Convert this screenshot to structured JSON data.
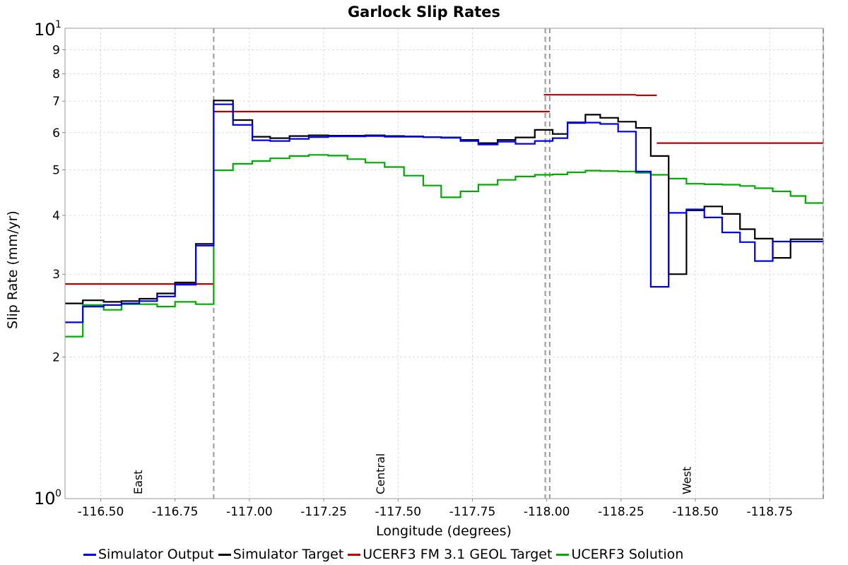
{
  "chart_data": {
    "type": "line",
    "title": "Garlock Slip Rates",
    "xlabel": "Longitude (degrees)",
    "ylabel": "Slip Rate (mm/yr)",
    "x_axis": {
      "reversed": true,
      "range": [
        -116.38,
        -118.93
      ],
      "ticks": [
        -116.5,
        -116.75,
        -117.0,
        -117.25,
        -117.5,
        -117.75,
        -118.0,
        -118.25,
        -118.5,
        -118.75
      ],
      "tick_labels": [
        "-116.50",
        "-116.75",
        "-117.00",
        "-117.25",
        "-117.50",
        "-117.75",
        "-118.00",
        "-118.25",
        "-118.50",
        "-118.75"
      ]
    },
    "y_axis": {
      "scale": "log",
      "range": [
        1,
        10
      ],
      "minor_ticks": [
        2,
        3,
        4,
        5,
        6,
        7,
        8,
        9
      ],
      "minor_tick_labels": [
        "2",
        "3",
        "4",
        "5",
        "6",
        "7",
        "8",
        "9"
      ],
      "major_tick_base": "10",
      "major_ticks": [
        {
          "value": 1,
          "exponent": "0"
        },
        {
          "value": 10,
          "exponent": "1"
        }
      ]
    },
    "grid": true,
    "legend_position": "bottom",
    "section_boundaries": [
      -116.88,
      -117.995,
      -118.01,
      -118.93
    ],
    "sections": [
      {
        "label": "East",
        "x": -116.625
      },
      {
        "label": "Central",
        "x": -117.44
      },
      {
        "label": "West",
        "x": -118.47
      }
    ],
    "series": [
      {
        "name": "UCERF3 FM 3.1 GEOL Target",
        "color": "#bb0000",
        "steps": [
          {
            "x0": -116.38,
            "x1": -116.88,
            "y": 2.86
          },
          {
            "x0": -116.88,
            "x1": -118.01,
            "y": 6.65
          },
          {
            "x0": -117.99,
            "x1": -118.3,
            "y": 7.22
          },
          {
            "x0": -118.3,
            "x1": -118.37,
            "y": 7.2
          },
          {
            "x0": -118.37,
            "x1": -118.93,
            "y": 5.7
          }
        ]
      },
      {
        "name": "UCERF3 Solution",
        "color": "#00aa00",
        "x": [
          -116.38,
          -116.44,
          -116.51,
          -116.57,
          -116.63,
          -116.69,
          -116.75,
          -116.82,
          -116.88,
          -116.945,
          -117.01,
          -117.07,
          -117.135,
          -117.2,
          -117.265,
          -117.33,
          -117.39,
          -117.455,
          -117.52,
          -117.585,
          -117.645,
          -117.71,
          -117.77,
          -117.835,
          -117.895,
          -117.96,
          -118.02,
          -118.07,
          -118.13,
          -118.18,
          -118.24,
          -118.3,
          -118.35,
          -118.41,
          -118.47,
          -118.53,
          -118.59,
          -118.65,
          -118.7,
          -118.76,
          -118.82,
          -118.87,
          -118.93
        ],
        "y": [
          2.21,
          2.58,
          2.52,
          2.59,
          2.59,
          2.56,
          2.62,
          2.59,
          4.99,
          5.15,
          5.22,
          5.29,
          5.35,
          5.38,
          5.36,
          5.27,
          5.18,
          5.07,
          4.86,
          4.63,
          4.37,
          4.5,
          4.65,
          4.76,
          4.84,
          4.88,
          4.89,
          4.94,
          4.98,
          4.97,
          4.96,
          4.93,
          4.88,
          4.79,
          4.67,
          4.66,
          4.65,
          4.62,
          4.57,
          4.5,
          4.4,
          4.25,
          4.25
        ]
      },
      {
        "name": "Simulator Target",
        "color": "#000000",
        "x": [
          -116.38,
          -116.44,
          -116.51,
          -116.57,
          -116.63,
          -116.69,
          -116.75,
          -116.82,
          -116.88,
          -116.945,
          -117.01,
          -117.07,
          -117.135,
          -117.2,
          -117.265,
          -117.33,
          -117.39,
          -117.455,
          -117.52,
          -117.585,
          -117.645,
          -117.71,
          -117.77,
          -117.835,
          -117.895,
          -117.96,
          -118.02,
          -118.07,
          -118.13,
          -118.18,
          -118.24,
          -118.3,
          -118.35,
          -118.41,
          -118.47,
          -118.53,
          -118.59,
          -118.65,
          -118.7,
          -118.76,
          -118.82,
          -118.87,
          -118.93
        ],
        "y": [
          2.6,
          2.64,
          2.62,
          2.63,
          2.66,
          2.73,
          2.88,
          3.48,
          7.02,
          6.38,
          5.88,
          5.84,
          5.9,
          5.92,
          5.91,
          5.91,
          5.92,
          5.9,
          5.89,
          5.87,
          5.86,
          5.79,
          5.7,
          5.79,
          5.86,
          6.08,
          5.96,
          6.29,
          6.55,
          6.45,
          6.33,
          6.14,
          5.35,
          3.0,
          4.1,
          4.18,
          4.03,
          3.74,
          3.57,
          3.25,
          3.56,
          3.56,
          3.56
        ]
      },
      {
        "name": "Simulator Output",
        "color": "#0000ee",
        "x": [
          -116.38,
          -116.44,
          -116.51,
          -116.57,
          -116.63,
          -116.69,
          -116.75,
          -116.82,
          -116.88,
          -116.945,
          -117.01,
          -117.07,
          -117.135,
          -117.2,
          -117.265,
          -117.33,
          -117.39,
          -117.455,
          -117.52,
          -117.585,
          -117.645,
          -117.71,
          -117.77,
          -117.835,
          -117.895,
          -117.96,
          -118.02,
          -118.07,
          -118.13,
          -118.18,
          -118.24,
          -118.3,
          -118.35,
          -118.41,
          -118.47,
          -118.53,
          -118.59,
          -118.65,
          -118.7,
          -118.76,
          -118.82,
          -118.87,
          -118.93
        ],
        "y": [
          2.37,
          2.56,
          2.58,
          2.6,
          2.63,
          2.69,
          2.85,
          3.45,
          6.89,
          6.23,
          5.78,
          5.76,
          5.82,
          5.87,
          5.89,
          5.89,
          5.9,
          5.88,
          5.88,
          5.87,
          5.85,
          5.76,
          5.66,
          5.74,
          5.68,
          5.76,
          5.84,
          6.31,
          6.3,
          6.26,
          6.03,
          4.96,
          2.82,
          4.05,
          4.12,
          3.96,
          3.68,
          3.51,
          3.2,
          3.52,
          3.52,
          3.52,
          3.52
        ]
      }
    ]
  },
  "legend": [
    {
      "name": "Simulator Output",
      "color": "#0000ee"
    },
    {
      "name": "Simulator Target",
      "color": "#000000"
    },
    {
      "name": "UCERF3 FM 3.1 GEOL Target",
      "color": "#bb0000"
    },
    {
      "name": "UCERF3 Solution",
      "color": "#00aa00"
    }
  ]
}
